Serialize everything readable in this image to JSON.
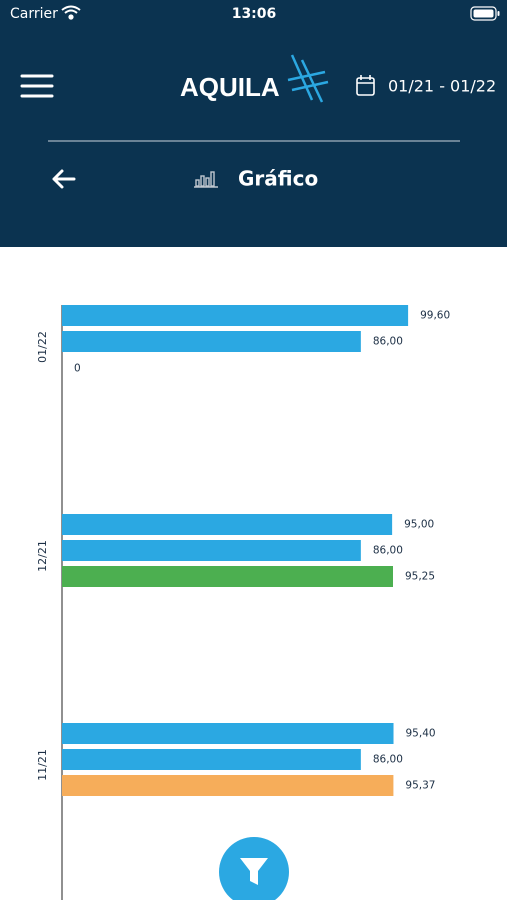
{
  "status_bar": {
    "carrier": "Carrier",
    "time": "13:06"
  },
  "header": {
    "brand": "AQUILA",
    "date_range": "01/21 - 01/22",
    "page_title": "Gráfico"
  },
  "chart_data": {
    "type": "bar",
    "orientation": "horizontal",
    "categories": [
      "01/22",
      "12/21",
      "11/21"
    ],
    "series": [
      {
        "color": "#2ba8e2",
        "values": [
          99.6,
          95.0,
          95.4
        ],
        "value_labels": [
          "99,60",
          "95,00",
          "95,40"
        ]
      },
      {
        "color": "#2ba8e2",
        "values": [
          86.0,
          86.0,
          86.0
        ],
        "value_labels": [
          "86,00",
          "86,00",
          "86,00"
        ]
      },
      {
        "colors": [
          "#4caf50",
          "#4caf50",
          "#f6ad5a"
        ],
        "values": [
          0,
          95.25,
          95.37
        ],
        "value_labels": [
          "0",
          "95,25",
          "95,37"
        ]
      }
    ]
  }
}
